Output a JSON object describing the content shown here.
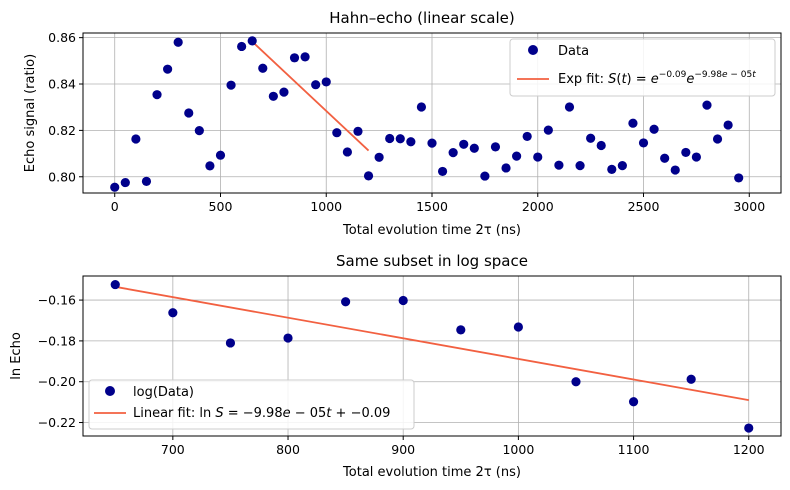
{
  "chart_data": [
    {
      "type": "scatter",
      "title": "Hahn–echo (linear scale)",
      "xlabel": "Total evolution time 2τ (ns)",
      "ylabel": "Echo signal (ratio)",
      "xlim": [
        -150,
        3150
      ],
      "ylim": [
        0.793,
        0.862
      ],
      "xticks": [
        0,
        500,
        1000,
        1500,
        2000,
        2500,
        3000
      ],
      "xtick_labels": [
        "0",
        "500",
        "1000",
        "1500",
        "2000",
        "2500",
        "3000"
      ],
      "yticks": [
        0.8,
        0.82,
        0.84,
        0.86
      ],
      "ytick_labels": [
        "0.80",
        "0.82",
        "0.84",
        "0.86"
      ],
      "grid": true,
      "legend_position": "top-right",
      "legend": [
        {
          "label": "Data",
          "color": "#00008b",
          "marker": "circle"
        },
        {
          "label": "Exp fit: S(t) = e^{-0.09} e^{-9.98e-05t}",
          "color": "#f26041",
          "marker": "line"
        }
      ],
      "series": [
        {
          "name": "Data",
          "color": "#00008b",
          "x": [
            0,
            50,
            100,
            150,
            200,
            250,
            300,
            350,
            400,
            450,
            500,
            550,
            600,
            650,
            700,
            750,
            800,
            850,
            900,
            950,
            1000,
            1050,
            1100,
            1150,
            1200,
            1250,
            1300,
            1350,
            1400,
            1450,
            1500,
            1550,
            1600,
            1650,
            1700,
            1750,
            1800,
            1850,
            1900,
            1950,
            2000,
            2050,
            2100,
            2150,
            2200,
            2250,
            2300,
            2350,
            2400,
            2450,
            2500,
            2550,
            2600,
            2650,
            2700,
            2750,
            2800,
            2850,
            2900,
            2950
          ],
          "y": [
            0.7955,
            0.7975,
            0.8163,
            0.798,
            0.8354,
            0.8464,
            0.858,
            0.8275,
            0.8199,
            0.8047,
            0.8093,
            0.8395,
            0.8562,
            0.8586,
            0.8468,
            0.8347,
            0.8365,
            0.8513,
            0.8517,
            0.8397,
            0.8409,
            0.819,
            0.8107,
            0.8196,
            0.8004,
            0.8084,
            0.8165,
            0.8164,
            0.8151,
            0.8301,
            0.8145,
            0.8023,
            0.8104,
            0.814,
            0.8123,
            0.8003,
            0.8129,
            0.8038,
            0.8089,
            0.8174,
            0.8085,
            0.8201,
            0.805,
            0.8301,
            0.8048,
            0.8166,
            0.8135,
            0.8032,
            0.8048,
            0.8231,
            0.8146,
            0.8205,
            0.808,
            0.8029,
            0.8105,
            0.8085,
            0.8309,
            0.8163,
            0.8223,
            0.7995
          ]
        },
        {
          "name": "Exp fit",
          "type": "line",
          "color": "#f26041",
          "x": [
            650,
            1200
          ],
          "y": [
            0.8583,
            0.8113
          ]
        }
      ]
    },
    {
      "type": "scatter",
      "title": "Same subset in log space",
      "xlabel": "Total evolution time 2τ (ns)",
      "ylabel": "ln Echo",
      "xlim": [
        622,
        1228
      ],
      "ylim": [
        -0.2266,
        -0.1482
      ],
      "xticks": [
        700,
        800,
        900,
        1000,
        1100,
        1200
      ],
      "xtick_labels": [
        "700",
        "800",
        "900",
        "1000",
        "1100",
        "1200"
      ],
      "yticks": [
        -0.16,
        -0.18,
        -0.2,
        -0.22
      ],
      "ytick_labels": [
        "−0.16",
        "−0.18",
        "−0.20",
        "−0.22"
      ],
      "grid": true,
      "legend_position": "bottom-left",
      "legend": [
        {
          "label": "log(Data)",
          "color": "#00008b",
          "marker": "circle"
        },
        {
          "label": "Linear fit: ln S = −9.98e−05t + −0.09",
          "color": "#f26041",
          "marker": "line"
        }
      ],
      "series": [
        {
          "name": "log(Data)",
          "color": "#00008b",
          "x": [
            650,
            700,
            750,
            800,
            850,
            900,
            950,
            1000,
            1050,
            1100,
            1150,
            1200
          ],
          "y": [
            -0.1524,
            -0.1662,
            -0.181,
            -0.1786,
            -0.1608,
            -0.1602,
            -0.1746,
            -0.1732,
            -0.2,
            -0.2098,
            -0.1988,
            -0.2227
          ]
        },
        {
          "name": "Linear fit",
          "type": "line",
          "color": "#f26041",
          "x": [
            650,
            1200
          ],
          "y": [
            -0.1535,
            -0.209
          ]
        }
      ]
    }
  ]
}
